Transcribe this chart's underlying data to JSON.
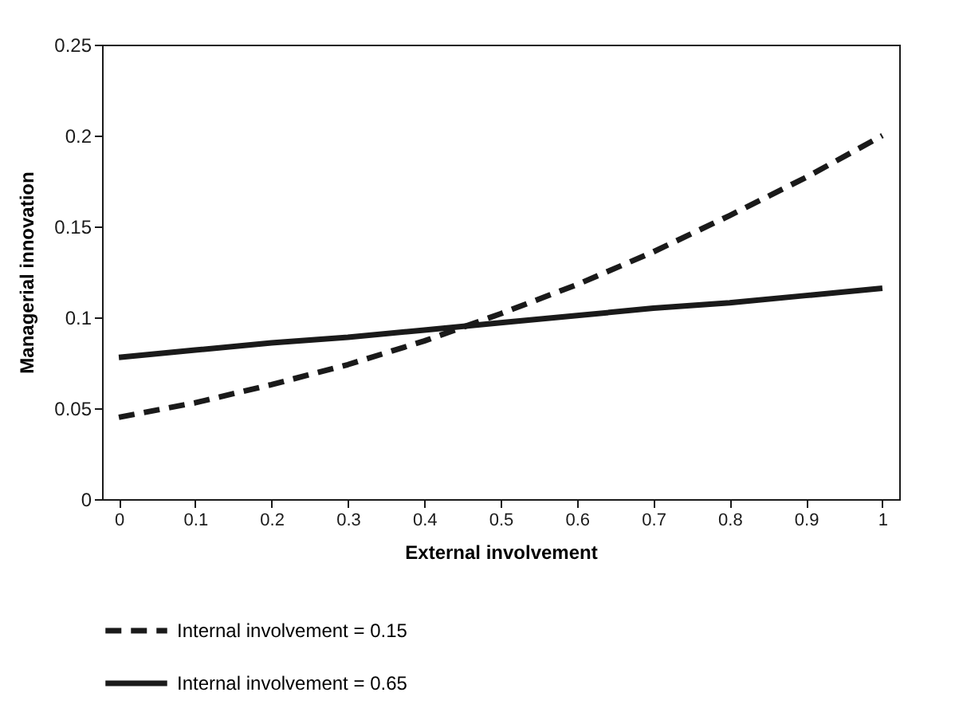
{
  "chart_data": {
    "type": "line",
    "xlabel": "External involvement",
    "ylabel": "Managerial innovation",
    "x": [
      0,
      0.1,
      0.2,
      0.3,
      0.4,
      0.5,
      0.6,
      0.7,
      0.8,
      0.9,
      1
    ],
    "series": [
      {
        "name": "Internal involvement = 0.15",
        "color": "#1a1a1a",
        "line_style": "dashed",
        "values": [
          0.045,
          0.053,
          0.063,
          0.074,
          0.087,
          0.102,
          0.118,
          0.136,
          0.156,
          0.177,
          0.2
        ]
      },
      {
        "name": "Internal involvement = 0.65",
        "color": "#1a1a1a",
        "line_style": "solid",
        "values": [
          0.078,
          0.082,
          0.086,
          0.089,
          0.093,
          0.097,
          0.101,
          0.105,
          0.108,
          0.112,
          0.116
        ]
      }
    ],
    "xlim": [
      -0.022,
      1.022
    ],
    "xticks": [
      0,
      0.1,
      0.2,
      0.3,
      0.4,
      0.5,
      0.6,
      0.7,
      0.8,
      0.9,
      1
    ],
    "ylim": [
      0,
      0.25
    ],
    "yticks": [
      0,
      0.05,
      0.1,
      0.15,
      0.2,
      0.25
    ],
    "grid": false,
    "legend": "bottom",
    "marker": "none"
  }
}
